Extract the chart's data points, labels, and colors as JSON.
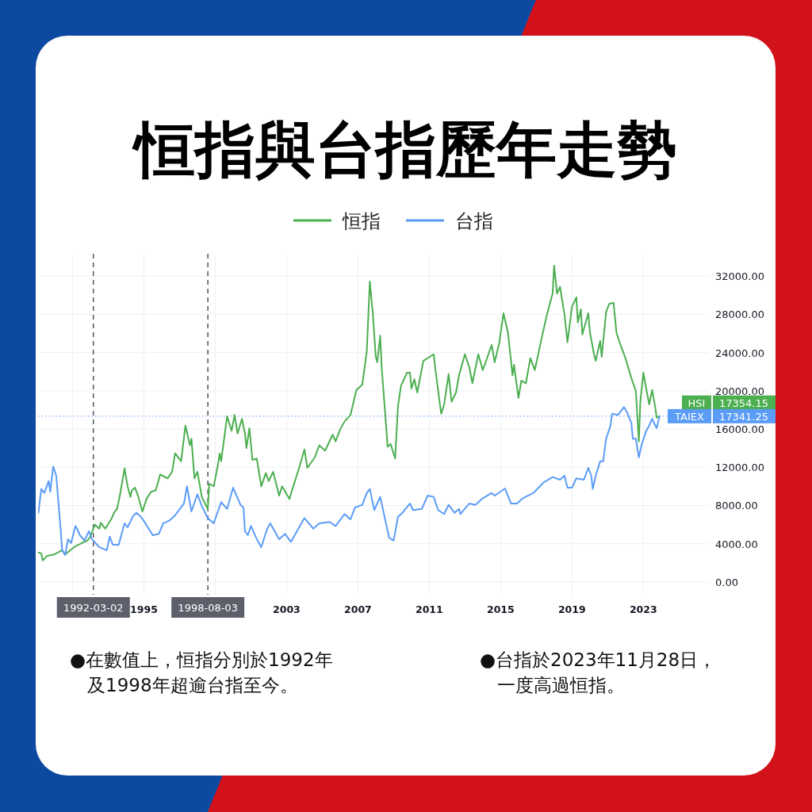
{
  "chart_data": {
    "type": "line",
    "title": "恒指與台指歷年走勢",
    "legend": "top",
    "grid": true,
    "line_style": "solid",
    "xlim": [
      "1989-01-25",
      "2026-08-20"
    ],
    "ylim": [
      -1330,
      34330
    ],
    "xticks": [
      {
        "value": "1991",
        "label": null
      },
      "1995",
      {
        "value": "1999",
        "label": null
      },
      "2003",
      "2007",
      "2011",
      "2015",
      "2019",
      "2023"
    ],
    "yticks": [
      {
        "value": 0,
        "label": "0.00"
      },
      {
        "value": 4000,
        "label": "4000.00"
      },
      {
        "value": 8000,
        "label": "8000.00"
      },
      {
        "value": 12000,
        "label": "12000.00"
      },
      {
        "value": 16000,
        "label": "16000.00"
      },
      {
        "value": 20000,
        "label": "20000.00"
      },
      {
        "value": 24000,
        "label": "24000.00"
      },
      {
        "value": 28000,
        "label": "28000.00"
      },
      {
        "value": 32000,
        "label": "32000.00"
      }
    ],
    "series": [
      {
        "name": "恒指",
        "color": "#4caf50",
        "x": [
          "1989-02",
          "1989-04",
          "1989-05",
          "1989-08",
          "1990-01",
          "1990-06",
          "1990-08",
          "1991-02",
          "1991-07",
          "1991-11",
          "1992-01",
          "1992-04",
          "1992-07",
          "1992-08",
          "1992-11",
          "1993-03",
          "1993-05",
          "1993-07",
          "1993-09",
          "1993-12",
          "1994-02",
          "1994-04",
          "1994-05",
          "1994-07",
          "1994-09",
          "1994-12",
          "1995-03",
          "1995-06",
          "1995-09",
          "1995-12",
          "1996-05",
          "1996-08",
          "1996-10",
          "1997-02",
          "1997-05",
          "1997-08",
          "1997-09",
          "1997-11",
          "1998-01",
          "1998-04",
          "1998-08",
          "1998-09",
          "1998-12",
          "1999-03",
          "1999-04",
          "1999-05",
          "1999-09",
          "1999-12",
          "2000-02",
          "2000-04",
          "2000-07",
          "2000-09",
          "2000-10",
          "2000-12",
          "2001-02",
          "2001-05",
          "2001-08",
          "2001-11",
          "2002-01",
          "2002-04",
          "2002-08",
          "2002-10",
          "2003-03",
          "2003-05",
          "2003-10",
          "2004-01",
          "2004-03",
          "2004-08",
          "2004-11",
          "2005-03",
          "2005-08",
          "2005-10",
          "2006-01",
          "2006-04",
          "2006-08",
          "2006-12",
          "2007-04",
          "2007-07",
          "2007-09",
          "2007-11",
          "2008-01",
          "2008-02",
          "2008-04",
          "2008-05",
          "2008-09",
          "2008-11",
          "2009-02",
          "2009-04",
          "2009-06",
          "2009-10",
          "2009-12",
          "2010-01",
          "2010-03",
          "2010-05",
          "2010-09",
          "2011-04",
          "2011-05",
          "2011-09",
          "2011-11",
          "2012-02",
          "2012-04",
          "2012-07",
          "2012-09",
          "2013-01",
          "2013-04",
          "2013-06",
          "2013-10",
          "2014-01",
          "2014-03",
          "2014-07",
          "2014-09",
          "2014-12",
          "2015-03",
          "2015-06",
          "2015-09",
          "2015-10",
          "2016-01",
          "2016-03",
          "2016-06",
          "2016-09",
          "2016-12",
          "2017-05",
          "2017-08",
          "2017-12",
          "2018-01",
          "2018-03",
          "2018-05",
          "2018-08",
          "2018-10",
          "2019-01",
          "2019-04",
          "2019-05",
          "2019-07",
          "2019-08",
          "2019-12",
          "2020-01",
          "2020-04",
          "2020-05",
          "2020-08",
          "2020-09",
          "2020-12",
          "2021-02",
          "2021-05",
          "2021-07",
          "2021-10",
          "2022-01",
          "2022-05",
          "2022-08",
          "2022-10",
          "2022-11",
          "2023-01",
          "2023-03",
          "2023-05",
          "2023-07",
          "2023-09",
          "2023-10",
          "2023-11-28"
        ],
        "values": [
          3090,
          2990,
          2260,
          2740,
          2900,
          3320,
          2880,
          3650,
          4060,
          4340,
          4750,
          6000,
          5580,
          6190,
          5580,
          6550,
          7240,
          7650,
          9180,
          11880,
          10010,
          8900,
          9590,
          9870,
          9040,
          7380,
          8760,
          9450,
          9590,
          11250,
          10840,
          11530,
          13460,
          12630,
          16360,
          14290,
          14980,
          10840,
          11530,
          8900,
          7650,
          10280,
          10010,
          12360,
          13460,
          12630,
          17330,
          15810,
          17470,
          15530,
          17060,
          15530,
          14010,
          16090,
          12770,
          12910,
          10010,
          11390,
          10560,
          11530,
          9040,
          10010,
          8680,
          9730,
          12210,
          13870,
          11940,
          13040,
          14290,
          13740,
          15400,
          14700,
          15950,
          16780,
          17470,
          20090,
          20650,
          24110,
          31430,
          28110,
          23550,
          22990,
          25760,
          22450,
          14150,
          14430,
          12910,
          18430,
          20510,
          21890,
          21890,
          20230,
          21200,
          19820,
          23130,
          23820,
          22450,
          17600,
          18570,
          21750,
          18850,
          19820,
          21620,
          23820,
          22450,
          20790,
          23820,
          22160,
          22990,
          24790,
          22990,
          24930,
          28110,
          26040,
          21620,
          22720,
          19260,
          21060,
          20790,
          23410,
          22160,
          25760,
          27840,
          30180,
          33090,
          30180,
          30870,
          27970,
          25070,
          28800,
          29770,
          27140,
          28520,
          25900,
          28110,
          26180,
          23690,
          23130,
          25210,
          23550,
          28250,
          29080,
          29210,
          26040,
          24650,
          23410,
          21340,
          19960,
          14700,
          18850,
          21890,
          20230,
          18570,
          20090,
          18300,
          17190,
          17354.15
        ]
      },
      {
        "name": "台指",
        "color": "#5b9cf6",
        "x": [
          "1989-02",
          "1989-04",
          "1989-06",
          "1989-09",
          "1989-10",
          "1989-12",
          "1990-02",
          "1990-05",
          "1990-06",
          "1990-08",
          "1990-10",
          "1990-12",
          "1991-03",
          "1991-04",
          "1991-06",
          "1991-09",
          "1991-12",
          "1992-02",
          "1992-07",
          "1992-09",
          "1992-12",
          "1993-02",
          "1993-04",
          "1993-08",
          "1993-12",
          "1994-02",
          "1994-06",
          "1994-08",
          "1994-11",
          "1995-02",
          "1995-07",
          "1995-11",
          "1996-02",
          "1996-06",
          "1996-10",
          "1997-04",
          "1997-06",
          "1997-09",
          "1998-01",
          "1998-04",
          "1998-08",
          "1998-12",
          "1999-05",
          "1999-09",
          "2000-01",
          "2000-06",
          "2000-08",
          "2000-09",
          "2000-11",
          "2001-01",
          "2001-05",
          "2001-08",
          "2001-12",
          "2002-02",
          "2002-08",
          "2002-12",
          "2003-04",
          "2004-01",
          "2004-07",
          "2004-11",
          "2005-06",
          "2005-10",
          "2006-04",
          "2006-08",
          "2006-11",
          "2007-04",
          "2007-07",
          "2007-09",
          "2007-12",
          "2008-04",
          "2008-10",
          "2009-01",
          "2009-04",
          "2009-07",
          "2009-12",
          "2010-02",
          "2010-08",
          "2010-12",
          "2011-04",
          "2011-07",
          "2011-11",
          "2012-02",
          "2012-06",
          "2012-09",
          "2012-10",
          "2013-04",
          "2013-08",
          "2014-01",
          "2014-07",
          "2014-09",
          "2015-04",
          "2015-08",
          "2015-12",
          "2016-04",
          "2016-11",
          "2017-06",
          "2017-12",
          "2018-05",
          "2018-08",
          "2018-10",
          "2019-01",
          "2019-04",
          "2019-09",
          "2019-12",
          "2020-02",
          "2020-03",
          "2020-05",
          "2020-08",
          "2020-10",
          "2020-12",
          "2021-03",
          "2021-04",
          "2021-08",
          "2021-12",
          "2022-02",
          "2022-05",
          "2022-06",
          "2022-08",
          "2022-10",
          "2022-12",
          "2023-03",
          "2023-05",
          "2023-07",
          "2023-10",
          "2023-11-28"
        ],
        "values": [
          7240,
          9730,
          9310,
          10560,
          9450,
          12080,
          11110,
          5580,
          3370,
          2820,
          4480,
          4060,
          5860,
          5580,
          4890,
          4340,
          5310,
          4480,
          3650,
          3510,
          3320,
          4750,
          3920,
          3870,
          6140,
          5720,
          6970,
          7240,
          6820,
          6140,
          4890,
          5030,
          6140,
          6410,
          6970,
          8210,
          10010,
          7380,
          9180,
          7940,
          6690,
          6140,
          8350,
          7650,
          9870,
          8070,
          7790,
          5310,
          4890,
          5860,
          4480,
          3650,
          5580,
          6140,
          4480,
          5030,
          4200,
          6690,
          5580,
          6140,
          6280,
          5860,
          7110,
          6550,
          7790,
          8070,
          9310,
          9730,
          7520,
          8900,
          4620,
          4340,
          6820,
          7240,
          8210,
          7520,
          7650,
          9040,
          8900,
          7520,
          7110,
          8070,
          7240,
          7650,
          7110,
          8210,
          8070,
          8760,
          9310,
          9040,
          9780,
          8210,
          8210,
          8760,
          9310,
          10420,
          10970,
          10700,
          11110,
          9870,
          9870,
          10840,
          10700,
          11940,
          11110,
          9730,
          11110,
          12630,
          12630,
          14980,
          16360,
          17600,
          17470,
          18300,
          17750,
          16640,
          14980,
          14980,
          13040,
          14430,
          15810,
          16360,
          17060,
          16090,
          17341.25
        ]
      }
    ],
    "ref_lines": [
      {
        "axis": "x",
        "value": "1992-03-02",
        "label": "1992-03-02",
        "color": "#5d606b",
        "line_style": "dashed"
      },
      {
        "axis": "x",
        "value": "1998-08-03",
        "label": "1998-08-03",
        "color": "#5d606b",
        "line_style": "dashed"
      },
      {
        "axis": "y",
        "value": 17341.25,
        "label": null,
        "color": "#5b9cf6",
        "line_style": "dotted"
      }
    ],
    "annotations": [
      "HSI",
      "17354.15",
      "TAIEX",
      "17341.25",
      "●在數值上，恒指分別於1992年及1998年超逾台指至今。",
      "●台指於2023年11月28日，一度高過恒指。"
    ]
  }
}
